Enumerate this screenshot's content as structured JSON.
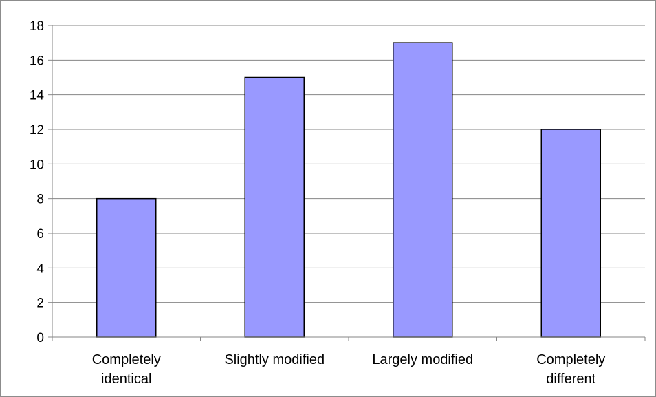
{
  "chart_data": {
    "type": "bar",
    "categories": [
      [
        "Completely",
        "identical"
      ],
      [
        "Slightly modified"
      ],
      [
        "Largely modified"
      ],
      [
        "Completely",
        "different"
      ]
    ],
    "values": [
      8,
      15,
      17,
      12
    ],
    "ylim": [
      0,
      18
    ],
    "y_ticks": [
      0,
      2,
      4,
      6,
      8,
      10,
      12,
      14,
      16,
      18
    ],
    "grid": true,
    "legend": "none",
    "colors": {
      "bar_fill": "#9999ff",
      "bar_stroke": "#000000",
      "grid": "#868686",
      "axis": "#868686"
    }
  }
}
